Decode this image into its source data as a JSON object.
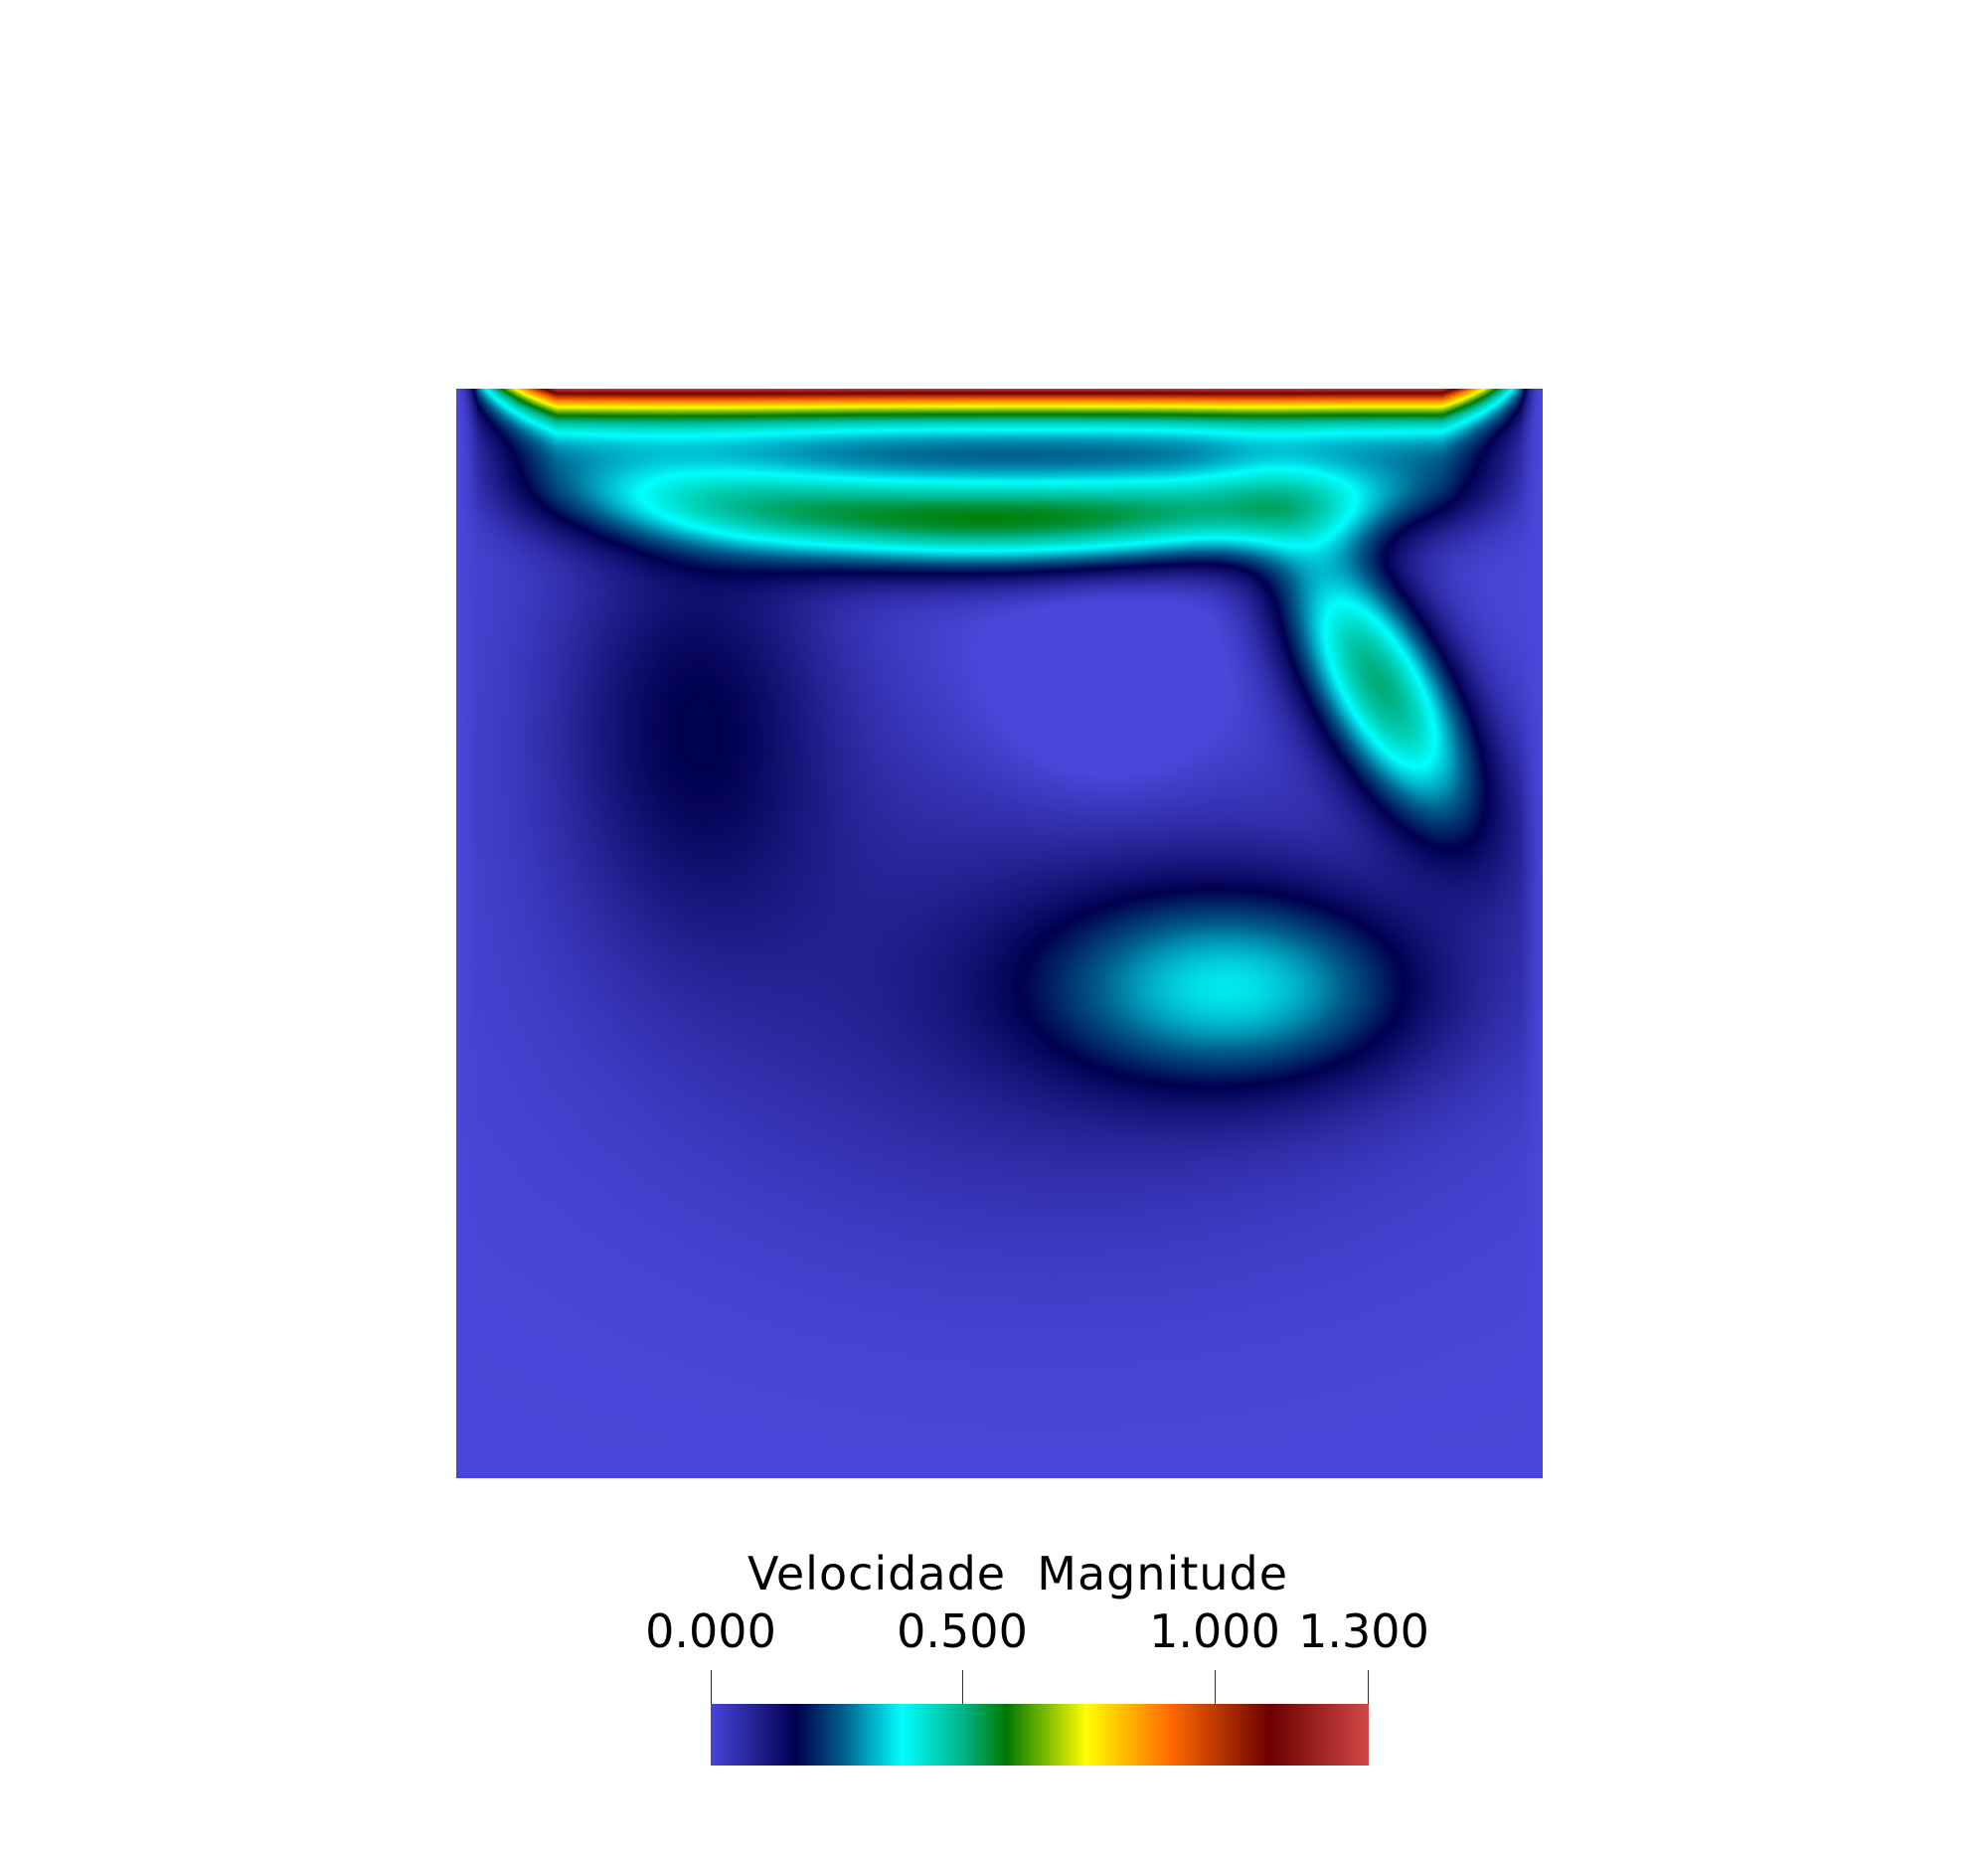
{
  "legend": {
    "title": "Velocidade  Magnitude",
    "range": [
      0,
      1.3
    ],
    "ticks": [
      {
        "value": 0.0,
        "label": "0.000"
      },
      {
        "value": 0.5,
        "label": "0.500"
      },
      {
        "value": 1.0,
        "label": "1.000"
      },
      {
        "value": 1.3,
        "label": "1.300"
      }
    ],
    "colormap": [
      {
        "t": 0.0,
        "color": "#4847d9"
      },
      {
        "t": 0.08,
        "color": "#1d1a85"
      },
      {
        "t": 0.13,
        "color": "#000050"
      },
      {
        "t": 0.2,
        "color": "#005f8f"
      },
      {
        "t": 0.29,
        "color": "#00ffff"
      },
      {
        "t": 0.38,
        "color": "#00b890"
      },
      {
        "t": 0.45,
        "color": "#007a00"
      },
      {
        "t": 0.57,
        "color": "#ffff00"
      },
      {
        "t": 0.7,
        "color": "#ff6a00"
      },
      {
        "t": 0.85,
        "color": "#6e0000"
      },
      {
        "t": 1.0,
        "color": "#d24848"
      }
    ]
  }
}
